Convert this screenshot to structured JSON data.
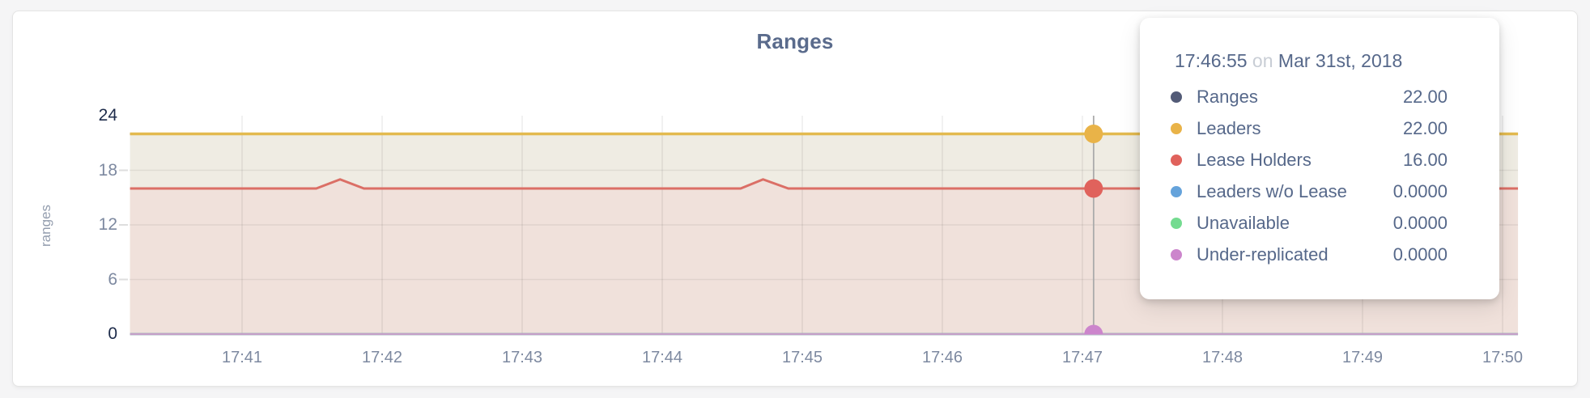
{
  "card": {
    "background": "#ffffff"
  },
  "chart_data": {
    "type": "area",
    "title": "Ranges",
    "ylabel": "ranges",
    "ylim": [
      0,
      24
    ],
    "yticks": [
      0,
      6,
      12,
      18,
      24
    ],
    "grid": true,
    "x_unit": "minutes_after_17:00",
    "xlim": [
      40.2,
      50.11
    ],
    "x_ticks": [
      {
        "label": "17:41",
        "t": 41
      },
      {
        "label": "17:42",
        "t": 42
      },
      {
        "label": "17:43",
        "t": 43
      },
      {
        "label": "17:44",
        "t": 44
      },
      {
        "label": "17:45",
        "t": 45
      },
      {
        "label": "17:46",
        "t": 46
      },
      {
        "label": "17:47",
        "t": 47
      },
      {
        "label": "17:48",
        "t": 48
      },
      {
        "label": "17:49",
        "t": 49
      },
      {
        "label": "17:50",
        "t": 50
      }
    ],
    "series": [
      {
        "name": "Ranges",
        "color": "#535b77",
        "fill": null,
        "width": 3,
        "points": [
          [
            40.2,
            22
          ],
          [
            50.11,
            22
          ]
        ]
      },
      {
        "name": "Leaders",
        "color": "#e3ba4f",
        "fill": "#efece3",
        "width": 3.5,
        "points": [
          [
            40.2,
            22
          ],
          [
            50.11,
            22
          ]
        ]
      },
      {
        "name": "Lease Holders",
        "color": "#db6f66",
        "fill": "#f0e1db",
        "width": 3,
        "points": [
          [
            40.2,
            16
          ],
          [
            41.53,
            16
          ],
          [
            41.7,
            17
          ],
          [
            41.87,
            16
          ],
          [
            44.56,
            16
          ],
          [
            44.72,
            17
          ],
          [
            44.9,
            16
          ],
          [
            50.11,
            16
          ]
        ]
      },
      {
        "name": "Leaders w/o Lease",
        "color": "#65a3db",
        "fill": null,
        "width": 2.5,
        "points": [
          [
            40.2,
            0
          ],
          [
            50.11,
            0
          ]
        ]
      },
      {
        "name": "Unavailable",
        "color": "#74db90",
        "fill": null,
        "width": 2.5,
        "points": [
          [
            40.2,
            0
          ],
          [
            50.11,
            0
          ]
        ]
      },
      {
        "name": "Under-replicated",
        "color": "#c49fc8",
        "fill": null,
        "width": 2.5,
        "points": [
          [
            40.2,
            0
          ],
          [
            50.11,
            0
          ]
        ]
      }
    ],
    "hover": {
      "t": 47.08,
      "points": [
        {
          "series": "Leaders",
          "value": 22,
          "color": "#e9b348"
        },
        {
          "series": "Lease Holders",
          "value": 16,
          "color": "#e0625c"
        },
        {
          "series": "Under-replicated",
          "value": 0,
          "color": "#cc85cc"
        }
      ]
    }
  },
  "tooltip": {
    "time": "17:46:55",
    "on_word": "on",
    "date": "Mar 31st, 2018",
    "rows": [
      {
        "label": "Ranges",
        "value": "22.00",
        "color": "#535b77"
      },
      {
        "label": "Leaders",
        "value": "22.00",
        "color": "#e9b348"
      },
      {
        "label": "Lease Holders",
        "value": "16.00",
        "color": "#e0625c"
      },
      {
        "label": "Leaders w/o Lease",
        "value": "0.0000",
        "color": "#65a3db"
      },
      {
        "label": "Unavailable",
        "value": "0.0000",
        "color": "#74db90"
      },
      {
        "label": "Under-replicated",
        "value": "0.0000",
        "color": "#cc85cc"
      }
    ]
  }
}
